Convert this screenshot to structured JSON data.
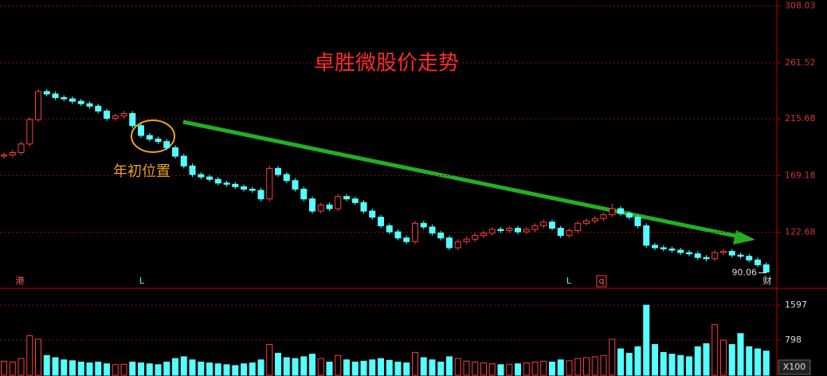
{
  "chart_data": {
    "type": "candlestick",
    "title": "卓胜微股价走势",
    "annotation": "年初位置",
    "markers": [
      "港",
      "L",
      "L",
      "q",
      "财"
    ],
    "ylim": [
      78,
      313
    ],
    "yticks": [
      122.68,
      169.18,
      215.68,
      261.52,
      308.03
    ],
    "candles": [
      [
        185,
        188,
        183,
        186
      ],
      [
        186,
        190,
        184,
        188
      ],
      [
        188,
        197,
        186,
        195
      ],
      [
        195,
        217,
        193,
        215
      ],
      [
        215,
        240,
        213,
        238
      ],
      [
        238,
        240,
        234,
        236
      ],
      [
        236,
        238,
        231,
        233
      ],
      [
        233,
        235,
        230,
        232
      ],
      [
        232,
        234,
        228,
        230
      ],
      [
        230,
        232,
        226,
        228
      ],
      [
        228,
        230,
        224,
        226
      ],
      [
        226,
        228,
        220,
        222
      ],
      [
        222,
        224,
        214,
        216
      ],
      [
        216,
        220,
        214,
        218
      ],
      [
        218,
        222,
        216,
        220
      ],
      [
        220,
        222,
        208,
        210
      ],
      [
        210,
        212,
        200,
        202
      ],
      [
        202,
        204,
        197,
        199
      ],
      [
        199,
        201,
        195,
        197
      ],
      [
        197,
        199,
        190,
        192
      ],
      [
        192,
        194,
        183,
        185
      ],
      [
        185,
        187,
        175,
        177
      ],
      [
        177,
        179,
        168,
        170
      ],
      [
        170,
        172,
        166,
        168
      ],
      [
        168,
        170,
        164,
        166
      ],
      [
        166,
        168,
        161,
        163
      ],
      [
        163,
        165,
        160,
        162
      ],
      [
        162,
        164,
        158,
        160
      ],
      [
        160,
        162,
        156,
        158
      ],
      [
        158,
        160,
        155,
        157
      ],
      [
        157,
        159,
        148,
        150
      ],
      [
        150,
        177,
        148,
        175
      ],
      [
        175,
        177,
        168,
        170
      ],
      [
        170,
        172,
        163,
        165
      ],
      [
        165,
        167,
        156,
        158
      ],
      [
        158,
        160,
        148,
        150
      ],
      [
        150,
        152,
        138,
        140
      ],
      [
        140,
        147,
        138,
        145
      ],
      [
        145,
        147,
        140,
        142
      ],
      [
        142,
        154,
        140,
        152
      ],
      [
        152,
        154,
        148,
        150
      ],
      [
        150,
        152,
        145,
        147
      ],
      [
        147,
        149,
        138,
        140
      ],
      [
        140,
        142,
        133,
        135
      ],
      [
        135,
        137,
        126,
        128
      ],
      [
        128,
        130,
        121,
        123
      ],
      [
        123,
        125,
        116,
        118
      ],
      [
        118,
        120,
        113,
        115
      ],
      [
        115,
        132,
        113,
        130
      ],
      [
        130,
        132,
        125,
        127
      ],
      [
        127,
        129,
        120,
        122
      ],
      [
        122,
        124,
        116,
        118
      ],
      [
        118,
        120,
        108,
        110
      ],
      [
        110,
        117,
        108,
        115
      ],
      [
        115,
        119,
        113,
        117
      ],
      [
        117,
        122,
        115,
        120
      ],
      [
        120,
        124,
        118,
        122
      ],
      [
        122,
        127,
        120,
        125
      ],
      [
        125,
        127,
        122,
        124
      ],
      [
        124,
        128,
        122,
        126
      ],
      [
        126,
        128,
        121,
        123
      ],
      [
        123,
        127,
        121,
        125
      ],
      [
        125,
        130,
        123,
        128
      ],
      [
        128,
        133,
        126,
        131
      ],
      [
        131,
        133,
        124,
        126
      ],
      [
        126,
        128,
        118,
        120
      ],
      [
        120,
        126,
        118,
        124
      ],
      [
        124,
        132,
        122,
        130
      ],
      [
        130,
        134,
        128,
        132
      ],
      [
        132,
        136,
        130,
        134
      ],
      [
        134,
        139,
        132,
        137
      ],
      [
        137,
        146,
        135,
        142
      ],
      [
        142,
        144,
        136,
        138
      ],
      [
        138,
        140,
        133,
        135
      ],
      [
        135,
        137,
        126,
        128
      ],
      [
        128,
        130,
        110,
        112
      ],
      [
        112,
        114,
        108,
        110
      ],
      [
        110,
        112,
        107,
        109
      ],
      [
        109,
        111,
        106,
        108
      ],
      [
        108,
        110,
        104,
        106
      ],
      [
        106,
        108,
        103,
        105
      ],
      [
        105,
        107,
        100,
        102
      ],
      [
        102,
        104,
        99,
        101
      ],
      [
        101,
        108,
        99,
        106
      ],
      [
        106,
        109,
        104,
        107
      ],
      [
        107,
        109,
        102,
        104
      ],
      [
        104,
        106,
        101,
        103
      ],
      [
        103,
        105,
        98,
        100
      ],
      [
        100,
        102,
        94,
        96
      ],
      [
        96,
        98,
        89,
        90.06
      ]
    ],
    "volume": {
      "unit_label": "X100",
      "ylim": [
        0,
        1980
      ],
      "yticks": [
        798,
        1597
      ],
      "values": [
        320,
        300,
        380,
        900,
        820,
        450,
        400,
        350,
        330,
        300,
        280,
        300,
        260,
        240,
        250,
        300,
        280,
        260,
        240,
        300,
        380,
        420,
        350,
        300,
        280,
        260,
        240,
        220,
        260,
        280,
        350,
        700,
        500,
        400,
        380,
        420,
        480,
        380,
        300,
        450,
        350,
        300,
        320,
        350,
        380,
        340,
        300,
        280,
        520,
        400,
        350,
        300,
        420,
        380,
        320,
        300,
        280,
        260,
        240,
        250,
        260,
        280,
        300,
        320,
        300,
        350,
        330,
        380,
        400,
        420,
        450,
        820,
        600,
        500,
        650,
        1597,
        700,
        520,
        480,
        450,
        420,
        650,
        720,
        1150,
        800,
        700,
        950,
        650,
        600,
        550
      ]
    }
  }
}
